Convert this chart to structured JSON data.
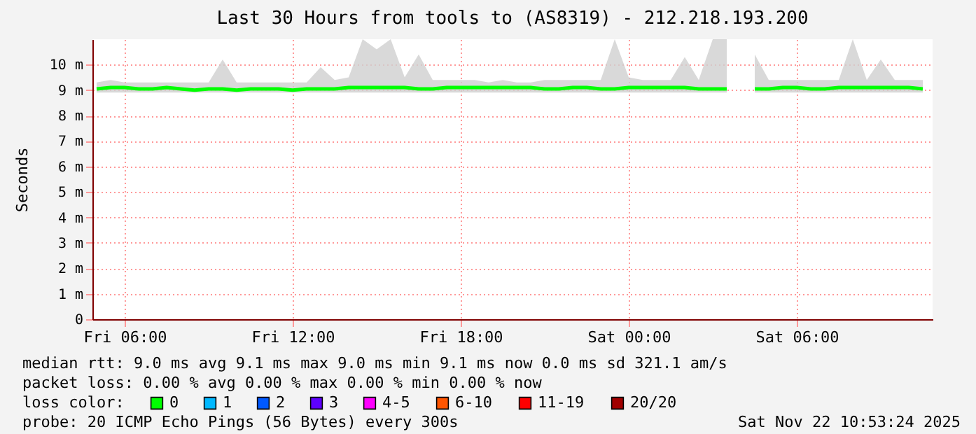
{
  "chart_data": {
    "type": "line",
    "title": "Last 30 Hours from tools to (AS8319) - 212.218.193.200",
    "ylabel": "Seconds",
    "x": [
      "2025-11-21T05:00",
      "2025-11-21T05:30",
      "2025-11-21T06:00",
      "2025-11-21T06:30",
      "2025-11-21T07:00",
      "2025-11-21T07:30",
      "2025-11-21T08:00",
      "2025-11-21T08:30",
      "2025-11-21T09:00",
      "2025-11-21T09:30",
      "2025-11-21T10:00",
      "2025-11-21T10:30",
      "2025-11-21T11:00",
      "2025-11-21T11:30",
      "2025-11-21T12:00",
      "2025-11-21T12:30",
      "2025-11-21T13:00",
      "2025-11-21T13:30",
      "2025-11-21T14:00",
      "2025-11-21T14:30",
      "2025-11-21T15:00",
      "2025-11-21T15:30",
      "2025-11-21T16:00",
      "2025-11-21T16:30",
      "2025-11-21T17:00",
      "2025-11-21T17:30",
      "2025-11-21T18:00",
      "2025-11-21T18:30",
      "2025-11-21T19:00",
      "2025-11-21T19:30",
      "2025-11-21T20:00",
      "2025-11-21T20:30",
      "2025-11-21T21:00",
      "2025-11-21T21:30",
      "2025-11-21T22:00",
      "2025-11-21T22:30",
      "2025-11-21T23:00",
      "2025-11-21T23:30",
      "2025-11-22T00:00",
      "2025-11-22T00:30",
      "2025-11-22T01:00",
      "2025-11-22T01:30",
      "2025-11-22T02:00",
      "2025-11-22T02:30",
      "2025-11-22T03:00",
      "2025-11-22T03:30",
      "2025-11-22T04:00",
      "2025-11-22T04:30",
      "2025-11-22T05:00",
      "2025-11-22T05:30",
      "2025-11-22T06:00",
      "2025-11-22T06:30",
      "2025-11-22T07:00",
      "2025-11-22T07:30",
      "2025-11-22T08:00",
      "2025-11-22T08:30",
      "2025-11-22T09:00",
      "2025-11-22T09:30",
      "2025-11-22T10:00",
      "2025-11-22T10:30"
    ],
    "series": [
      {
        "name": "0",
        "color": "#00ff00",
        "values": [
          9.05,
          9.1,
          9.1,
          9.05,
          9.05,
          9.1,
          9.05,
          9.0,
          9.05,
          9.05,
          9.0,
          9.05,
          9.05,
          9.05,
          9.0,
          9.05,
          9.05,
          9.05,
          9.1,
          9.1,
          9.1,
          9.1,
          9.1,
          9.05,
          9.05,
          9.1,
          9.1,
          9.1,
          9.1,
          9.1,
          9.1,
          9.1,
          9.05,
          9.05,
          9.1,
          9.1,
          9.05,
          9.05,
          9.1,
          9.1,
          9.1,
          9.1,
          9.1,
          9.05,
          9.05,
          9.05,
          null,
          9.05,
          9.05,
          9.1,
          9.1,
          9.05,
          9.05,
          9.1,
          9.1,
          9.1,
          9.1,
          9.1,
          9.1,
          9.05
        ],
        "lower": [
          8.9,
          8.9,
          8.9,
          8.9,
          8.9,
          8.9,
          8.9,
          8.9,
          8.9,
          8.9,
          8.9,
          8.9,
          8.9,
          8.9,
          8.9,
          8.9,
          8.9,
          8.9,
          8.9,
          8.9,
          8.9,
          8.9,
          8.9,
          8.9,
          8.9,
          8.9,
          8.9,
          8.9,
          8.9,
          8.9,
          8.9,
          8.9,
          8.9,
          8.9,
          8.9,
          8.9,
          8.9,
          8.9,
          8.9,
          8.9,
          8.9,
          8.9,
          8.9,
          8.9,
          8.9,
          8.9,
          null,
          8.9,
          8.9,
          8.9,
          8.9,
          8.9,
          8.9,
          8.9,
          8.9,
          8.9,
          8.9,
          8.9,
          8.9,
          8.9
        ],
        "upper": [
          9.3,
          9.4,
          9.3,
          9.3,
          9.3,
          9.3,
          9.3,
          9.3,
          9.3,
          10.2,
          9.3,
          9.3,
          9.3,
          9.3,
          9.3,
          9.3,
          9.9,
          9.4,
          9.5,
          11,
          10.6,
          11,
          9.5,
          10.4,
          9.4,
          9.4,
          9.4,
          9.4,
          9.3,
          9.4,
          9.3,
          9.3,
          9.4,
          9.4,
          9.4,
          9.4,
          9.4,
          11,
          9.5,
          9.4,
          9.4,
          9.4,
          10.3,
          9.4,
          11,
          11,
          null,
          10.4,
          9.4,
          9.4,
          9.4,
          9.4,
          9.4,
          9.4,
          11,
          9.4,
          10.2,
          9.4,
          9.4,
          9.4
        ]
      },
      {
        "name": "1",
        "color": "#00b8ff",
        "values": [
          null,
          null,
          null,
          null,
          null,
          null,
          null,
          null,
          null,
          null,
          null,
          null,
          null,
          null,
          null,
          null,
          null,
          null,
          null,
          null,
          null,
          null,
          null,
          null,
          null,
          null,
          null,
          null,
          null,
          null,
          null,
          null,
          null,
          null,
          null,
          null,
          null,
          null,
          null,
          null,
          null,
          null,
          null,
          null,
          null,
          null,
          null,
          null,
          null,
          null,
          null,
          null,
          null,
          null,
          null,
          null,
          null,
          null,
          null,
          null
        ]
      },
      {
        "name": "2",
        "color": "#0059ff",
        "values": [
          null,
          null,
          null,
          null,
          null,
          null,
          null,
          null,
          null,
          null,
          null,
          null,
          null,
          null,
          null,
          null,
          null,
          null,
          null,
          null,
          null,
          null,
          null,
          null,
          null,
          null,
          null,
          null,
          null,
          null,
          null,
          null,
          null,
          null,
          null,
          null,
          null,
          null,
          null,
          null,
          null,
          null,
          null,
          null,
          null,
          null,
          null,
          null,
          null,
          null,
          null,
          null,
          null,
          null,
          null,
          null,
          null,
          null,
          null,
          null
        ]
      },
      {
        "name": "3",
        "color": "#5e00ff",
        "values": [
          null,
          null,
          null,
          null,
          null,
          null,
          null,
          null,
          null,
          null,
          null,
          null,
          null,
          null,
          null,
          null,
          null,
          null,
          null,
          null,
          null,
          null,
          null,
          null,
          null,
          null,
          null,
          null,
          null,
          null,
          null,
          null,
          null,
          null,
          null,
          null,
          null,
          null,
          null,
          null,
          null,
          null,
          null,
          null,
          null,
          null,
          null,
          null,
          null,
          null,
          null,
          null,
          null,
          null,
          null,
          null,
          null,
          null,
          null,
          null
        ]
      },
      {
        "name": "4-5",
        "color": "#ff00ff",
        "values": [
          null,
          null,
          null,
          null,
          null,
          null,
          null,
          null,
          null,
          null,
          null,
          null,
          null,
          null,
          null,
          null,
          null,
          null,
          null,
          null,
          null,
          null,
          null,
          null,
          null,
          null,
          null,
          null,
          null,
          null,
          null,
          null,
          null,
          null,
          null,
          null,
          null,
          null,
          null,
          null,
          null,
          null,
          null,
          null,
          null,
          null,
          null,
          null,
          null,
          null,
          null,
          null,
          null,
          null,
          null,
          null,
          null,
          null,
          null,
          null
        ]
      },
      {
        "name": "6-10",
        "color": "#ff5500",
        "values": [
          null,
          null,
          null,
          null,
          null,
          null,
          null,
          null,
          null,
          null,
          null,
          null,
          null,
          null,
          null,
          null,
          null,
          null,
          null,
          null,
          null,
          null,
          null,
          null,
          null,
          null,
          null,
          null,
          null,
          null,
          null,
          null,
          null,
          null,
          null,
          null,
          null,
          null,
          null,
          null,
          null,
          null,
          null,
          null,
          null,
          null,
          null,
          null,
          null,
          null,
          null,
          null,
          null,
          null,
          null,
          null,
          null,
          null,
          null,
          null
        ]
      },
      {
        "name": "11-19",
        "color": "#ff0000",
        "values": [
          null,
          null,
          null,
          null,
          null,
          null,
          null,
          null,
          null,
          null,
          null,
          null,
          null,
          null,
          null,
          null,
          null,
          null,
          null,
          null,
          null,
          null,
          null,
          null,
          null,
          null,
          null,
          null,
          null,
          null,
          null,
          null,
          null,
          null,
          null,
          null,
          null,
          null,
          null,
          null,
          null,
          null,
          null,
          null,
          null,
          null,
          null,
          null,
          null,
          null,
          null,
          null,
          null,
          null,
          null,
          null,
          null,
          null,
          null,
          null
        ]
      },
      {
        "name": "20/20",
        "color": "#a10000",
        "values": [
          null,
          null,
          null,
          null,
          null,
          null,
          null,
          null,
          null,
          null,
          null,
          null,
          null,
          null,
          null,
          null,
          null,
          null,
          null,
          null,
          null,
          null,
          null,
          null,
          null,
          null,
          null,
          null,
          null,
          null,
          null,
          null,
          null,
          null,
          null,
          null,
          null,
          null,
          null,
          null,
          null,
          null,
          null,
          null,
          null,
          null,
          null,
          null,
          null,
          null,
          null,
          null,
          null,
          null,
          null,
          null,
          null,
          null,
          null,
          null
        ]
      }
    ],
    "xlim": [
      "2025-11-21T04:51",
      "2025-11-22T10:51"
    ],
    "xticks": [
      {
        "value": "2025-11-21T06:00",
        "label": "Fri 06:00"
      },
      {
        "value": "2025-11-21T12:00",
        "label": "Fri 12:00"
      },
      {
        "value": "2025-11-21T18:00",
        "label": "Fri 18:00"
      },
      {
        "value": "2025-11-22T00:00",
        "label": "Sat 00:00"
      },
      {
        "value": "2025-11-22T06:00",
        "label": "Sat 06:00"
      }
    ],
    "ylim": [
      0,
      11
    ],
    "yticks": [
      0,
      {
        "value": 1,
        "label": "1 m"
      },
      {
        "value": 2,
        "label": "2 m"
      },
      {
        "value": 3,
        "label": "3 m"
      },
      {
        "value": 4,
        "label": "4 m"
      },
      {
        "value": 5,
        "label": "5 m"
      },
      {
        "value": 6,
        "label": "6 m"
      },
      {
        "value": 7,
        "label": "7 m"
      },
      {
        "value": 8,
        "label": "8 m"
      },
      {
        "value": 9,
        "label": "9 m"
      },
      {
        "value": 10,
        "label": "10 m"
      }
    ],
    "grid": true,
    "legend": "bottom",
    "line_style": "solid",
    "marker": "none",
    "annotations": [
      "median rtt:  9.0 ms avg  9.1 ms max  9.0 ms min  9.1 ms now  0.0 ms sd  321.1  am/s",
      "packet loss: 0.00 % avg  0.00 % max  0.00 % min  0.00 % now",
      "loss color:",
      "probe:       20 ICMP Echo Pings (56 Bytes) every 300s",
      "Sat Nov 22 10:53:24 2025"
    ]
  }
}
